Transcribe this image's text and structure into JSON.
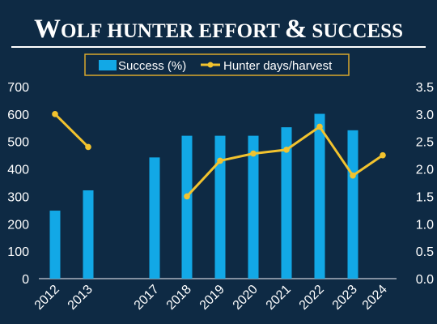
{
  "chart_data": {
    "type": "bar+line",
    "title": "Wolf hunter effort & success",
    "categories": [
      "2012",
      "2013",
      "2017",
      "2018",
      "2019",
      "2020",
      "2021",
      "2022",
      "2023",
      "2024"
    ],
    "series": [
      {
        "name": "Success (%)",
        "type": "bar",
        "axis": "left",
        "values": [
          248,
          322,
          442,
          521,
          521,
          521,
          552,
          601,
          541,
          null
        ]
      },
      {
        "name": "Hunter days/harvest",
        "type": "line",
        "axis": "right",
        "values": [
          3.0,
          2.4,
          null,
          1.5,
          2.15,
          2.28,
          2.35,
          2.77,
          1.88,
          2.25
        ]
      }
    ],
    "left_axis": {
      "min": 0,
      "max": 700,
      "ticks": [
        "0",
        "100",
        "200",
        "300",
        "400",
        "500",
        "600",
        "700"
      ]
    },
    "right_axis": {
      "min": 0,
      "max": 3.5,
      "ticks": [
        "0.0",
        "0.5",
        "1.0",
        "1.5",
        "2.0",
        "2.5",
        "3.0",
        "3.5"
      ]
    },
    "grid": false,
    "legend_position": "top-center",
    "colors": {
      "background": "#0e2a44",
      "bars": "#12a8e6",
      "line": "#f2c32e",
      "text": "#ffffff",
      "axis": "#c9ced6",
      "legend_border": "#d8a82c"
    }
  }
}
